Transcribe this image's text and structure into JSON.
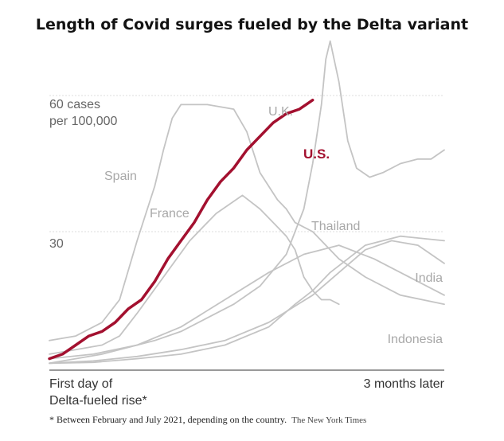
{
  "chart_data": {
    "type": "line",
    "title": "Length of Covid surges fueled by the Delta variant",
    "ytick_labels": [
      "60 cases\nper 100,000",
      "30"
    ],
    "y_gridlines": [
      60,
      30
    ],
    "ylim": [
      0,
      72
    ],
    "xlim": [
      0,
      90
    ],
    "x_label_start": "First day of\nDelta-fueled rise*",
    "x_label_end": "3 months later",
    "x_unit": "days",
    "grid": "horizontal",
    "series": [
      {
        "name": "U.S.",
        "highlight": true,
        "color": "#a3102f",
        "x": [
          0,
          3,
          6,
          9,
          12,
          15,
          18,
          21,
          24,
          27,
          30,
          33,
          36,
          39,
          42,
          45,
          48,
          51,
          54,
          57,
          60
        ],
        "y": [
          2,
          3,
          5,
          7,
          8,
          10,
          13,
          15,
          19,
          24,
          28,
          32,
          37,
          41,
          44,
          48,
          51,
          54,
          56,
          57,
          59
        ]
      },
      {
        "name": "U.K.",
        "highlight": false,
        "color": "#c4c4c4",
        "x": [
          0,
          6,
          12,
          18,
          24,
          30,
          36,
          42,
          48,
          54,
          58,
          60,
          62,
          63,
          64,
          66,
          68,
          70,
          73,
          76,
          80,
          84,
          87,
          90
        ],
        "y": [
          1,
          2,
          3,
          4.5,
          6,
          8,
          11,
          14,
          18,
          25,
          35,
          45,
          58,
          68,
          72,
          63,
          50,
          44,
          42,
          43,
          45,
          46,
          46,
          48
        ]
      },
      {
        "name": "Spain",
        "highlight": false,
        "color": "#c4c4c4",
        "x": [
          0,
          6,
          12,
          16,
          20,
          24,
          26,
          28,
          30,
          36,
          42,
          45,
          48,
          52,
          54,
          56,
          60,
          66,
          72,
          80,
          90
        ],
        "y": [
          6,
          7,
          10,
          15,
          28,
          40,
          48,
          55,
          58,
          58,
          57,
          52,
          43,
          37,
          35,
          32,
          30,
          24,
          20,
          16,
          14
        ]
      },
      {
        "name": "France",
        "highlight": false,
        "color": "#c4c4c4",
        "x": [
          0,
          6,
          12,
          16,
          20,
          26,
          32,
          38,
          44,
          48,
          52,
          54,
          56,
          58,
          60,
          62,
          64,
          66
        ],
        "y": [
          3,
          4,
          5,
          7,
          12,
          20,
          28,
          34,
          38,
          35,
          31,
          29,
          26,
          20,
          17,
          15,
          15,
          14
        ]
      },
      {
        "name": "Thailand",
        "highlight": false,
        "color": "#c4c4c4",
        "x": [
          0,
          10,
          20,
          30,
          40,
          50,
          58,
          66,
          74,
          80,
          86,
          90
        ],
        "y": [
          2,
          3,
          5,
          9,
          15,
          21,
          25,
          27,
          24,
          21,
          18,
          16
        ]
      },
      {
        "name": "India",
        "highlight": false,
        "color": "#c4c4c4",
        "x": [
          0,
          10,
          20,
          30,
          40,
          50,
          60,
          66,
          72,
          78,
          84,
          90
        ],
        "y": [
          1,
          1.5,
          2.5,
          4,
          6,
          10,
          16,
          21,
          26,
          28,
          27,
          23
        ]
      },
      {
        "name": "Indonesia",
        "highlight": false,
        "color": "#c4c4c4",
        "x": [
          0,
          10,
          20,
          30,
          40,
          50,
          56,
          60,
          64,
          68,
          72,
          76,
          80,
          90
        ],
        "y": [
          1,
          1.2,
          2,
          3,
          5,
          9,
          14,
          17,
          21,
          24,
          27,
          28,
          29,
          28
        ]
      }
    ]
  },
  "footnote": "* Between February and July 2021, depending on the country.",
  "credit": "The New York Times"
}
